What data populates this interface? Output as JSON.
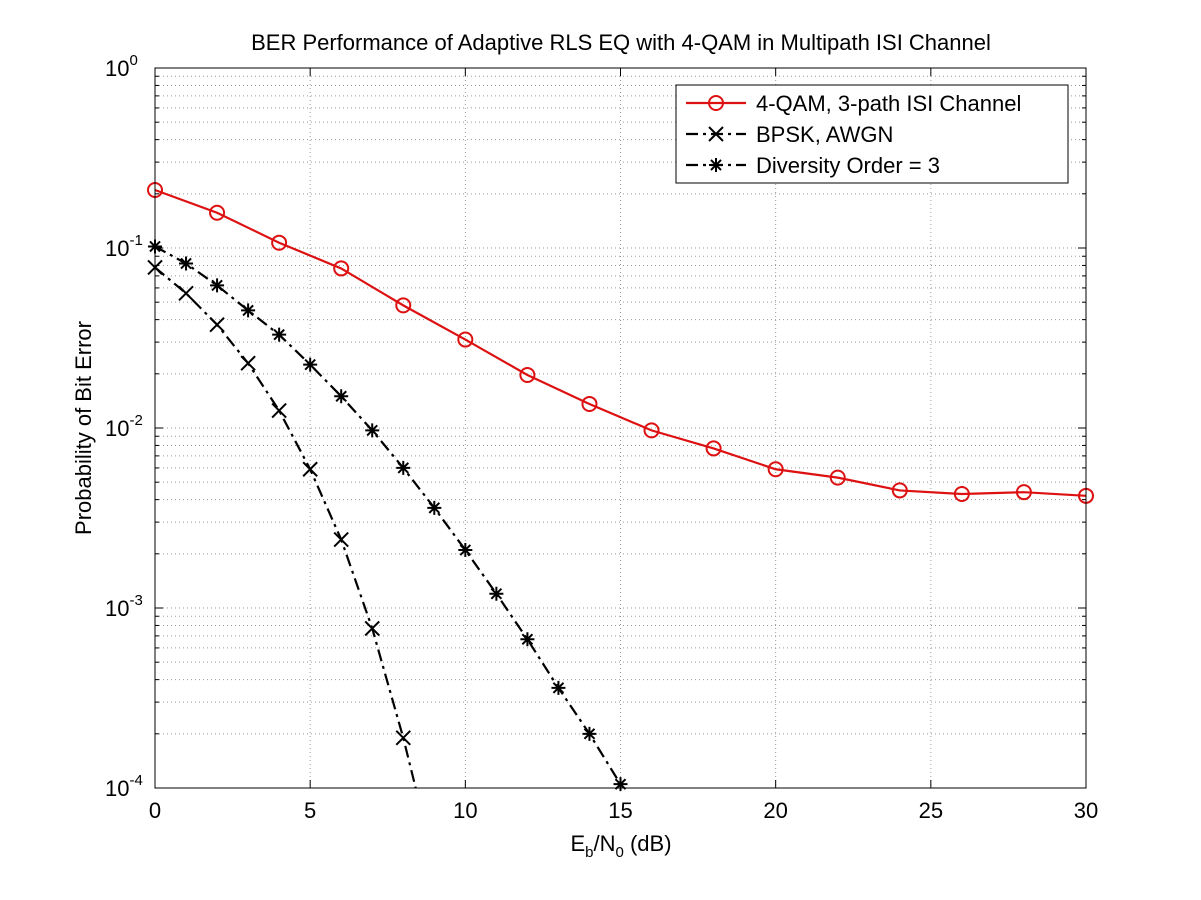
{
  "chart_data": {
    "type": "line",
    "title": "BER Performance of Adaptive RLS EQ with 4-QAM in Multipath ISI Channel",
    "xlabel": {
      "base": "E",
      "sub1": "b",
      "mid": "/N",
      "sub2": "0",
      "tail": " (dB)"
    },
    "ylabel": "Probability of Bit Error",
    "xlim": [
      0,
      30
    ],
    "ylim": [
      0.0001,
      1
    ],
    "yscale": "log",
    "grid": true,
    "minor_grid": true,
    "xticks": [
      0,
      5,
      10,
      15,
      20,
      25,
      30
    ],
    "xtick_labels": [
      "0",
      "5",
      "10",
      "15",
      "20",
      "25",
      "30"
    ],
    "yticks": [
      {
        "value": 1,
        "base": "10",
        "exp": "0"
      },
      {
        "value": 0.1,
        "base": "10",
        "exp": "-1"
      },
      {
        "value": 0.01,
        "base": "10",
        "exp": "-2"
      },
      {
        "value": 0.001,
        "base": "10",
        "exp": "-3"
      },
      {
        "value": 0.0001,
        "base": "10",
        "exp": "-4"
      }
    ],
    "legend_position": "top-right",
    "series": [
      {
        "name": "4-QAM, 3-path ISI Channel",
        "color": "#dd1111",
        "marker": "circle",
        "line": "solid",
        "x": [
          0,
          2,
          4,
          6,
          8,
          10,
          12,
          14,
          16,
          18,
          20,
          22,
          24,
          26,
          28,
          30
        ],
        "y": [
          0.21,
          0.157,
          0.107,
          0.077,
          0.048,
          0.031,
          0.0197,
          0.0136,
          0.0097,
          0.0077,
          0.0059,
          0.0053,
          0.0045,
          0.0043,
          0.0044,
          0.0042
        ]
      },
      {
        "name": "BPSK, AWGN",
        "color": "#000000",
        "marker": "x",
        "line": "dashdot",
        "x": [
          0,
          1,
          2,
          3,
          4,
          5,
          6,
          7,
          8,
          8.4
        ],
        "y": [
          0.078,
          0.056,
          0.0375,
          0.0229,
          0.0125,
          0.0059,
          0.0024,
          0.00077,
          0.00019,
          0.0001
        ]
      },
      {
        "name": "Diversity Order = 3",
        "color": "#000000",
        "marker": "asterisk",
        "line": "dashdot",
        "x": [
          0,
          1,
          2,
          3,
          4,
          5,
          6,
          7,
          8,
          9,
          10,
          11,
          12,
          13,
          14,
          15
        ],
        "y": [
          0.102,
          0.082,
          0.062,
          0.045,
          0.033,
          0.0225,
          0.015,
          0.0097,
          0.006,
          0.0036,
          0.0021,
          0.0012,
          0.00067,
          0.00036,
          0.0002,
          0.000105
        ]
      }
    ]
  }
}
